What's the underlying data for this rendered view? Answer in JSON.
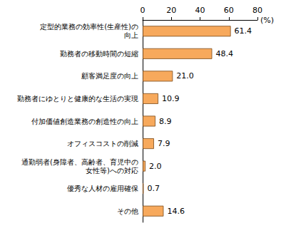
{
  "chart_data": {
    "type": "bar",
    "orientation": "horizontal",
    "x_label": "(%)",
    "categories": [
      "定型的業務の効率性(生産性)の\n向上",
      "勤務者の移動時間の短縮",
      "顧客満足度の向上",
      "勤務者にゆとりと健康的な生活の実現",
      "付加価値創造業務の創造性の向上",
      "オフィスコストの削減",
      "通勤弱者(身障者、高齢者、育児中の\n女性等)への対応",
      "優秀な人材の雇用確保",
      "その他"
    ],
    "values": [
      61.4,
      48.4,
      21.0,
      10.9,
      8.9,
      7.9,
      2.0,
      0.7,
      14.6
    ],
    "value_labels": [
      "61.4",
      "48.4",
      "21.0",
      "10.9",
      "8.9",
      "7.9",
      "2.0",
      "0.7",
      "14.6"
    ],
    "color": "#f7a95c",
    "xlim": [
      0,
      80
    ],
    "xticks": [
      0,
      20,
      40,
      60,
      80
    ],
    "grid": false,
    "data_labels": true
  }
}
